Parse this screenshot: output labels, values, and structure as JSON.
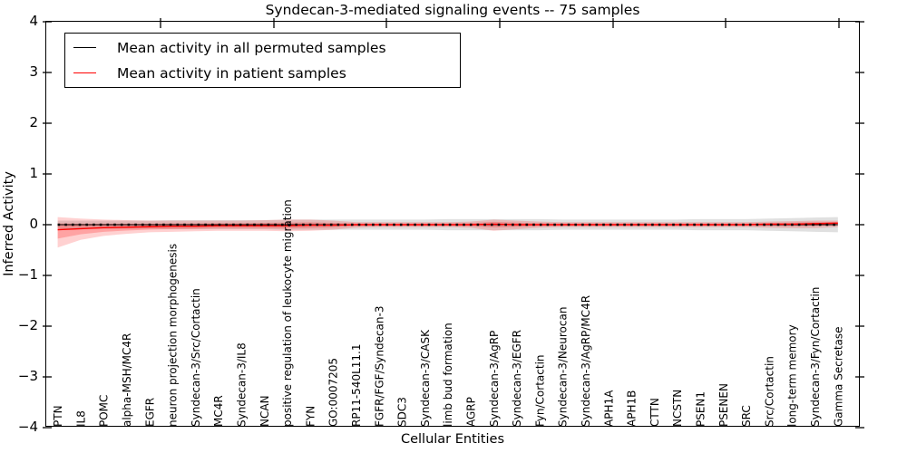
{
  "chart_data": {
    "type": "line",
    "title": "Syndecan-3-mediated signaling events -- 75 samples",
    "xlabel": "Cellular Entities",
    "ylabel": "Inferred Activity",
    "ylim": [
      -4,
      4
    ],
    "yticks": [
      "4",
      "3",
      "2",
      "1",
      "0",
      "−1",
      "−2",
      "−3",
      "−4"
    ],
    "ytick_values": [
      4,
      3,
      2,
      1,
      0,
      -1,
      -2,
      -3,
      -4
    ],
    "grid": false,
    "legend_position": "upper left",
    "legend": [
      {
        "label": "Mean activity in all permuted samples",
        "color": "#000000"
      },
      {
        "label": "Mean activity in patient samples",
        "color": "#ff0000"
      }
    ],
    "categories": [
      "PTN",
      "IL8",
      "POMC",
      "alpha-MSH/MC4R",
      "EGFR",
      "neuron projection morphogenesis",
      "Syndecan-3/Src/Cortactin",
      "MC4R",
      "Syndecan-3/IL8",
      "NCAN",
      "positive regulation of leukocyte migration",
      "FYN",
      "GO:0007205",
      "RP11-540L11.1",
      "FGFR/FGF/Syndecan-3",
      "SDC3",
      "Syndecan-3/CASK",
      "limb bud formation",
      "AGRP",
      "Syndecan-3/AgRP",
      "Syndecan-3/EGFR",
      "Fyn/Cortactin",
      "Syndecan-3/Neurocan",
      "Syndecan-3/AgRP/MC4R",
      "APH1A",
      "APH1B",
      "CTTN",
      "NCSTN",
      "PSEN1",
      "PSENEN",
      "SRC",
      "Src/Cortactin",
      "long-term memory",
      "Syndecan-3/Fyn/Cortactin",
      "Gamma Secretase"
    ],
    "series": [
      {
        "name": "Mean activity in all permuted samples",
        "color": "#000000",
        "band_color": "#bbbbbb",
        "values": [
          0,
          0,
          0,
          0,
          0,
          0,
          0,
          0,
          0,
          0,
          0,
          0,
          0,
          0,
          0,
          0,
          0,
          0,
          0,
          0,
          0,
          0,
          0,
          0,
          0,
          0,
          0,
          0,
          0,
          0,
          0,
          0,
          0,
          0,
          0
        ],
        "band_upper": [
          0.08,
          0.08,
          0.08,
          0.08,
          0.08,
          0.09,
          0.09,
          0.09,
          0.09,
          0.09,
          0.1,
          0.1,
          0.1,
          0.1,
          0.1,
          0.1,
          0.1,
          0.11,
          0.11,
          0.11,
          0.11,
          0.11,
          0.1,
          0.1,
          0.1,
          0.1,
          0.1,
          0.1,
          0.11,
          0.11,
          0.11,
          0.12,
          0.13,
          0.14,
          0.15
        ],
        "band_lower": [
          -0.08,
          -0.08,
          -0.08,
          -0.08,
          -0.08,
          -0.09,
          -0.09,
          -0.09,
          -0.09,
          -0.09,
          -0.1,
          -0.1,
          -0.1,
          -0.1,
          -0.1,
          -0.1,
          -0.1,
          -0.11,
          -0.11,
          -0.11,
          -0.11,
          -0.11,
          -0.1,
          -0.1,
          -0.1,
          -0.1,
          -0.1,
          -0.1,
          -0.11,
          -0.11,
          -0.11,
          -0.12,
          -0.13,
          -0.14,
          -0.15
        ]
      },
      {
        "name": "Mean activity in patient samples",
        "color": "#ff0000",
        "band_color": "#ff0000",
        "values": [
          -0.1,
          -0.08,
          -0.06,
          -0.05,
          -0.04,
          -0.03,
          -0.03,
          -0.02,
          -0.02,
          -0.02,
          -0.02,
          -0.01,
          -0.01,
          0,
          0,
          0,
          0,
          0,
          0,
          0.01,
          0,
          0,
          0,
          0,
          0,
          0,
          0,
          0,
          0,
          0,
          0,
          0.01,
          0.01,
          0.02,
          0.03
        ],
        "band_upper": [
          0.15,
          0.12,
          0.1,
          0.09,
          0.08,
          0.08,
          0.08,
          0.08,
          0.08,
          0.09,
          0.1,
          0.1,
          0.08,
          0.05,
          0.05,
          0.05,
          0.05,
          0.05,
          0.06,
          0.1,
          0.08,
          0.06,
          0.05,
          0.05,
          0.05,
          0.05,
          0.05,
          0.05,
          0.05,
          0.05,
          0.05,
          0.06,
          0.07,
          0.08,
          0.08
        ],
        "band_lower": [
          -0.45,
          -0.3,
          -0.22,
          -0.18,
          -0.15,
          -0.14,
          -0.13,
          -0.12,
          -0.12,
          -0.12,
          -0.13,
          -0.12,
          -0.1,
          -0.06,
          -0.05,
          -0.05,
          -0.05,
          -0.05,
          -0.06,
          -0.12,
          -0.09,
          -0.06,
          -0.05,
          -0.05,
          -0.05,
          -0.05,
          -0.05,
          -0.05,
          -0.05,
          -0.05,
          -0.05,
          -0.06,
          -0.07,
          -0.07,
          -0.05
        ]
      }
    ]
  }
}
